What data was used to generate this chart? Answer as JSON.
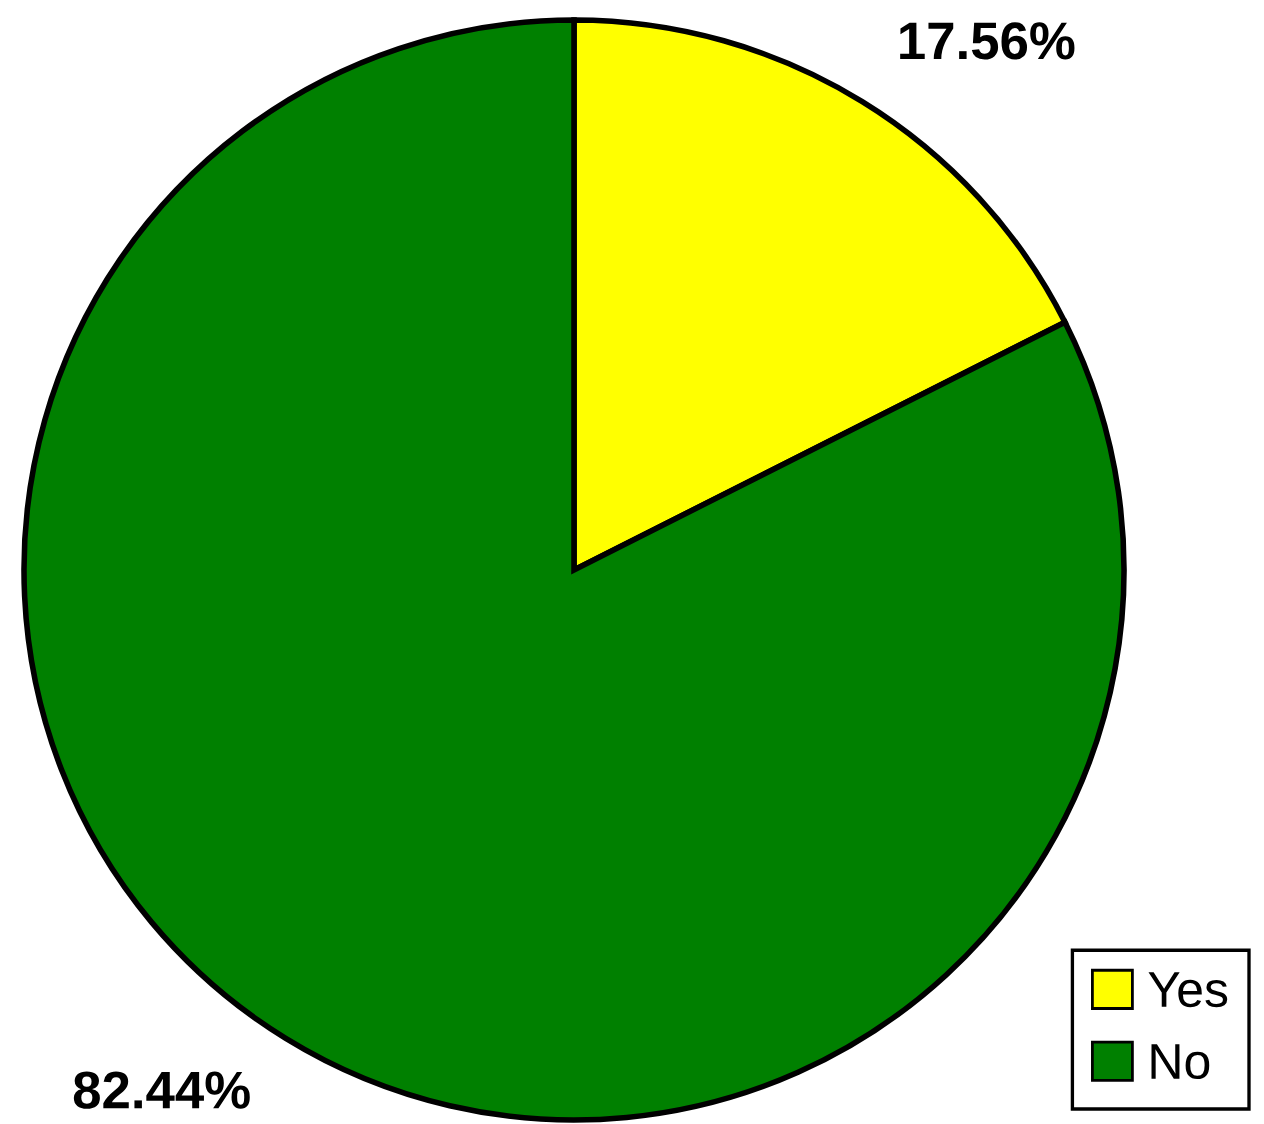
{
  "chart_data": {
    "type": "pie",
    "categories": [
      "Yes",
      "No"
    ],
    "values": [
      17.56,
      82.44
    ],
    "colors": [
      "#ffff00",
      "#008000"
    ],
    "value_labels": [
      "17.56%",
      "82.44%"
    ],
    "legend": "bottom right"
  }
}
